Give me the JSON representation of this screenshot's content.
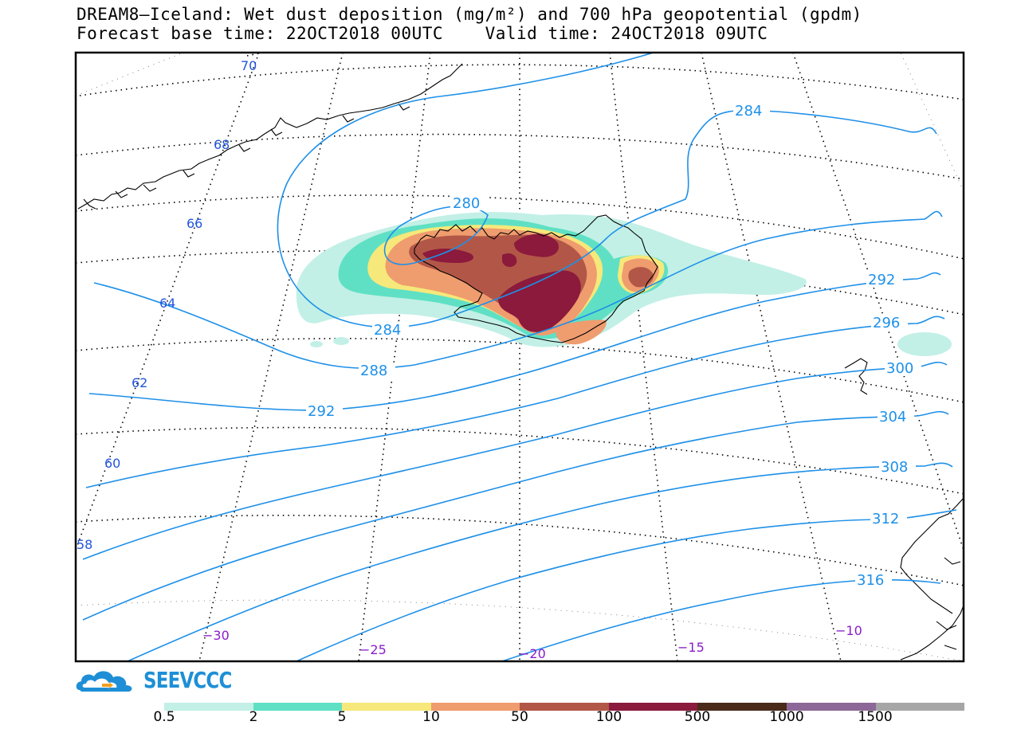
{
  "title_line1": "DREAM8—Iceland: Wet dust deposition (mg/m²) and 700 hPa geopotential (gpdm)",
  "title_line2": "Forecast base time: 22OCT2018 00UTC    Valid time: 24OCT2018 09UTC",
  "logo_text": "SEEVCCC",
  "latitude_labels": [
    "70",
    "68",
    "66",
    "64",
    "62",
    "60",
    "58"
  ],
  "longitude_labels": [
    "−30",
    "−25",
    "−20",
    "−15",
    "−10"
  ],
  "contour_labels": [
    "280",
    "284",
    "284",
    "288",
    "292",
    "292",
    "296",
    "300",
    "304",
    "308",
    "312",
    "316"
  ],
  "legend": {
    "colors": [
      "#c2f0e6",
      "#5fe0c4",
      "#f6e87a",
      "#ef9c6e",
      "#b25747",
      "#8b1a3c",
      "#4a2a18",
      "#8d6797",
      "#a6a6a6"
    ],
    "labels": [
      "0.5",
      "2",
      "5",
      "10",
      "50",
      "100",
      "500",
      "1000",
      "1500"
    ]
  },
  "colors": {
    "contour": "#1e90e8",
    "lat_label": "#2255dd",
    "lon_label": "#8a1ec8"
  }
}
